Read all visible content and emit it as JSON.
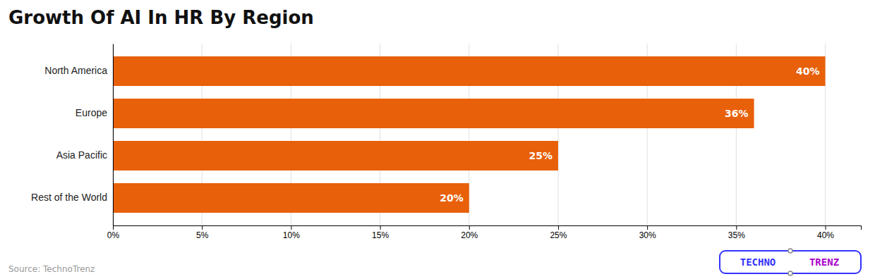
{
  "chart_data": {
    "type": "bar",
    "orientation": "horizontal",
    "title": "Growth Of AI In HR By Region",
    "categories": [
      "North America",
      "Europe",
      "Asia Pacific",
      "Rest of the World"
    ],
    "values": [
      40,
      36,
      25,
      20
    ],
    "value_labels": [
      "40%",
      "36%",
      "25%",
      "20%"
    ],
    "data_labels": true,
    "color": "#E8600A",
    "xlim": [
      0,
      42
    ],
    "xticks": [
      {
        "value": 0,
        "label": "0%"
      },
      {
        "value": 5,
        "label": "5%"
      },
      {
        "value": 10,
        "label": "10%"
      },
      {
        "value": 15,
        "label": "15%"
      },
      {
        "value": 20,
        "label": "20%"
      },
      {
        "value": 25,
        "label": "25%"
      },
      {
        "value": 30,
        "label": "30%"
      },
      {
        "value": 35,
        "label": "35%"
      },
      {
        "value": 40,
        "label": "40%"
      }
    ],
    "grid": true,
    "annotations": [
      {
        "text": "Source: TechnoTrenz"
      },
      {
        "text": "TECHNO",
        "color": "#3333FF"
      },
      {
        "text": "TRENZ",
        "color": "#AA00CC"
      }
    ]
  }
}
